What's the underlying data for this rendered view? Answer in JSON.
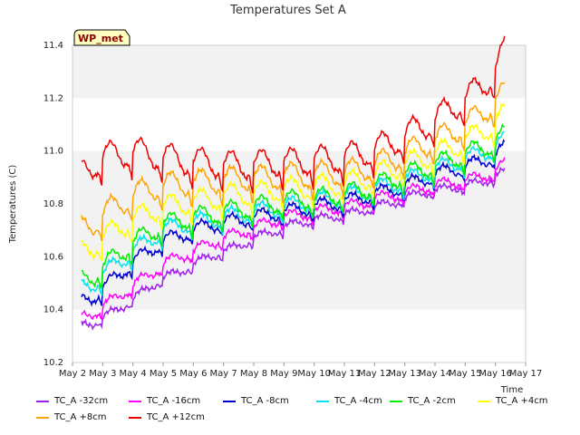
{
  "chart_data": {
    "type": "line",
    "title": "Temperatures Set A",
    "xlabel": "Time",
    "ylabel": "Temperatures (C)",
    "badge": "WP_met",
    "xlim": [
      2,
      17
    ],
    "ylim": [
      10.2,
      11.4
    ],
    "x_ticks": [
      2,
      3,
      4,
      5,
      6,
      7,
      8,
      9,
      10,
      11,
      12,
      13,
      14,
      15,
      16,
      17
    ],
    "x_tick_labels": [
      "May 2",
      "May 3",
      "May 4",
      "May 5",
      "May 6",
      "May 7",
      "May 8",
      "May 9",
      "May 10",
      "May 11",
      "May 12",
      "May 13",
      "May 14",
      "May 15",
      "May 16",
      "May 17"
    ],
    "y_ticks": [
      10.2,
      10.4,
      10.6,
      10.8,
      11.0,
      11.2,
      11.4
    ],
    "y_tick_labels": [
      "10.2",
      "10.4",
      "10.6",
      "10.8",
      "11.0",
      "11.2",
      "11.4"
    ],
    "x": [
      2.3,
      2.7,
      3.0,
      3.5,
      4.0,
      4.5,
      5.0,
      5.5,
      6.0,
      6.5,
      7.0,
      7.5,
      8.0,
      8.5,
      9.0,
      9.5,
      10.0,
      10.5,
      11.0,
      11.5,
      12.0,
      12.5,
      13.0,
      13.5,
      14.0,
      14.5,
      15.0,
      15.5,
      15.9,
      16.3
    ],
    "series": [
      {
        "name": "TC_A -32cm",
        "color": "#a020f0",
        "values": [
          10.34,
          10.35,
          10.37,
          10.4,
          10.44,
          10.48,
          10.52,
          10.54,
          10.57,
          10.6,
          10.62,
          10.64,
          10.67,
          10.69,
          10.71,
          10.73,
          10.74,
          10.75,
          10.76,
          10.77,
          10.79,
          10.8,
          10.82,
          10.84,
          10.85,
          10.86,
          10.87,
          10.88,
          10.9,
          10.92
        ]
      },
      {
        "name": "TC_A -16cm",
        "color": "#ff00ff",
        "values": [
          10.37,
          10.39,
          10.41,
          10.45,
          10.49,
          10.53,
          10.57,
          10.6,
          10.62,
          10.65,
          10.67,
          10.69,
          10.71,
          10.73,
          10.75,
          10.76,
          10.77,
          10.78,
          10.79,
          10.8,
          10.82,
          10.83,
          10.84,
          10.86,
          10.87,
          10.88,
          10.89,
          10.9,
          10.92,
          10.95
        ]
      },
      {
        "name": "TC_A -8cm",
        "color": "#0000cd",
        "values": [
          10.43,
          10.45,
          10.48,
          10.53,
          10.58,
          10.62,
          10.66,
          10.68,
          10.7,
          10.72,
          10.73,
          10.74,
          10.75,
          10.76,
          10.77,
          10.78,
          10.79,
          10.8,
          10.81,
          10.82,
          10.84,
          10.85,
          10.87,
          10.89,
          10.91,
          10.93,
          10.94,
          10.96,
          10.98,
          11.01
        ]
      },
      {
        "name": "TC_A -4cm",
        "color": "#00e5ee",
        "values": [
          10.48,
          10.5,
          10.53,
          10.58,
          10.62,
          10.66,
          10.7,
          10.72,
          10.73,
          10.74,
          10.75,
          10.76,
          10.77,
          10.78,
          10.79,
          10.8,
          10.81,
          10.82,
          10.83,
          10.84,
          10.86,
          10.87,
          10.89,
          10.91,
          10.93,
          10.95,
          10.97,
          10.99,
          11.01,
          11.04
        ]
      },
      {
        "name": "TC_A -2cm",
        "color": "#00ee00",
        "values": [
          10.51,
          10.53,
          10.56,
          10.61,
          10.65,
          10.69,
          10.72,
          10.74,
          10.75,
          10.76,
          10.77,
          10.78,
          10.79,
          10.8,
          10.81,
          10.82,
          10.82,
          10.83,
          10.84,
          10.85,
          10.87,
          10.89,
          10.91,
          10.93,
          10.95,
          10.97,
          10.99,
          11.01,
          11.03,
          11.06
        ]
      },
      {
        "name": "TC_A +4cm",
        "color": "#ffff00",
        "values": [
          10.62,
          10.64,
          10.67,
          10.71,
          10.74,
          10.77,
          10.79,
          10.8,
          10.81,
          10.82,
          10.83,
          10.84,
          10.84,
          10.85,
          10.86,
          10.86,
          10.87,
          10.87,
          10.88,
          10.89,
          10.91,
          10.93,
          10.95,
          10.97,
          10.99,
          11.01,
          11.04,
          11.07,
          11.1,
          11.14
        ]
      },
      {
        "name": "TC_A +8cm",
        "color": "#ffa500",
        "values": [
          10.71,
          10.73,
          10.76,
          10.8,
          10.83,
          10.86,
          10.87,
          10.88,
          10.88,
          10.89,
          10.89,
          10.9,
          10.9,
          10.9,
          10.91,
          10.91,
          10.91,
          10.92,
          10.92,
          10.93,
          10.95,
          10.97,
          10.99,
          11.02,
          11.04,
          11.07,
          11.1,
          11.14,
          11.18,
          11.22
        ]
      },
      {
        "name": "TC_A +12cm",
        "color": "#ee0000",
        "values": [
          10.92,
          10.95,
          10.98,
          10.99,
          11.0,
          10.99,
          10.98,
          10.97,
          10.96,
          10.96,
          10.95,
          10.95,
          10.95,
          10.96,
          10.96,
          10.96,
          10.97,
          10.97,
          10.98,
          10.99,
          11.01,
          11.03,
          11.06,
          11.09,
          11.12,
          11.16,
          11.2,
          11.24,
          11.29,
          11.38
        ]
      }
    ],
    "grid_bands": true,
    "legend_position": "bottom"
  }
}
